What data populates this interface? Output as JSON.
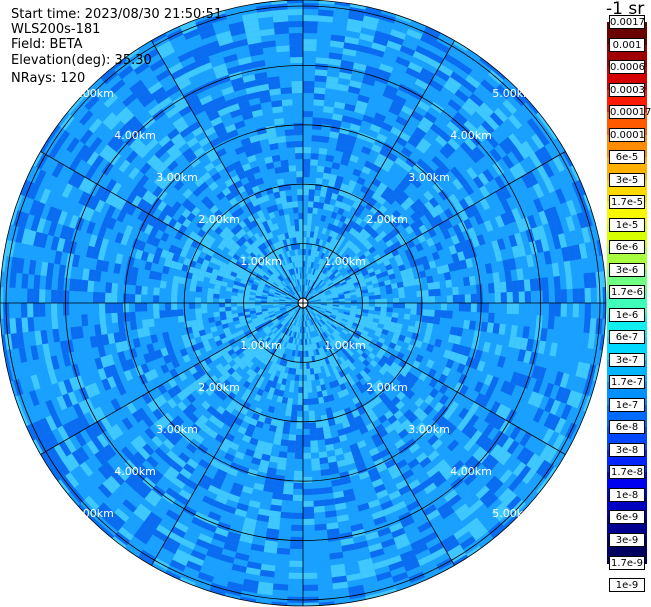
{
  "info": {
    "start_time": "Start time: 2023/08/30 21:50:51",
    "instrument": "WLS200s-181",
    "field": "Field: BETA",
    "elevation": "Elevation(deg): 35.30",
    "nrays": "NRays: 120"
  },
  "unit_label": "-1 sr",
  "range_labels": [
    "1.00km",
    "2.00km",
    "3.00km",
    "4.00km",
    "5.00km"
  ],
  "colorbar": {
    "labels": [
      "0.0017",
      "0.001",
      "0.0006",
      "0.0003",
      "0.00017",
      "0.0001",
      "6e-5",
      "3e-5",
      "1.7e-5",
      "1e-5",
      "6e-6",
      "3e-6",
      "1.7e-6",
      "1e-6",
      "6e-7",
      "3e-7",
      "1.7e-7",
      "1e-7",
      "6e-8",
      "3e-8",
      "1.7e-8",
      "1e-8",
      "6e-9",
      "3e-9",
      "1.7e-9",
      "1e-9"
    ],
    "colors": [
      "#6a0000",
      "#a00000",
      "#d40000",
      "#ff1a00",
      "#ff5a00",
      "#ff8c00",
      "#ffb000",
      "#ffd800",
      "#f8f800",
      "#d8ff00",
      "#a8ff40",
      "#70ff80",
      "#40ffb8",
      "#10f0f0",
      "#00d8ff",
      "#00b4ff",
      "#0090ff",
      "#006cff",
      "#0048ff",
      "#0024ff",
      "#0000f0",
      "#0000c0",
      "#000090",
      "#000060"
    ]
  },
  "colors": {
    "ring_line": "#000000",
    "field_light": "#3fc8ff",
    "field_mid": "#1aa0ff",
    "field_dark": "#0a6cf0",
    "range_label": "#ffffff"
  }
}
